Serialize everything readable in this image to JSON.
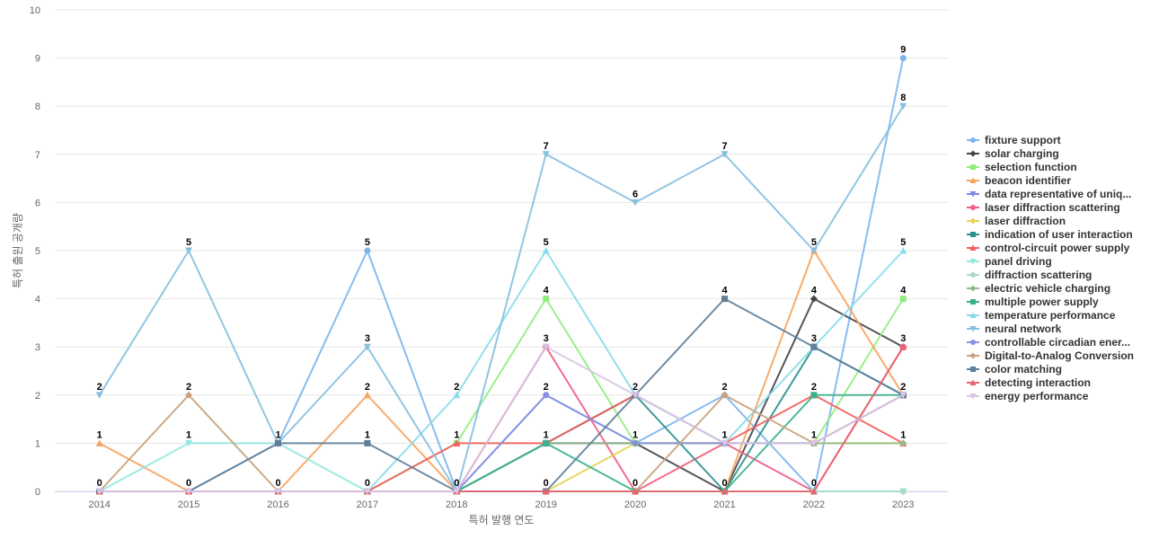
{
  "chart_data": {
    "type": "line",
    "xlabel": "특허 발행 연도",
    "ylabel": "특허 출원 공개량",
    "ylim": [
      0,
      10
    ],
    "yticks": [
      0,
      1,
      2,
      3,
      4,
      5,
      6,
      7,
      8,
      9,
      10
    ],
    "categories": [
      "2014",
      "2015",
      "2016",
      "2017",
      "2018",
      "2019",
      "2020",
      "2021",
      "2022",
      "2023"
    ],
    "grid": "horizontal",
    "legend_position": "right",
    "series": [
      {
        "name": "fixture support",
        "color": "#7cb5ec",
        "marker": "circle",
        "values": [
          0,
          0,
          1,
          5,
          0,
          2,
          1,
          2,
          0,
          9
        ]
      },
      {
        "name": "solar charging",
        "color": "#434348",
        "marker": "diamond",
        "values": [
          0,
          0,
          0,
          0,
          0,
          1,
          1,
          0,
          4,
          3
        ]
      },
      {
        "name": "selection function",
        "color": "#90ed7d",
        "marker": "square",
        "values": [
          0,
          0,
          0,
          0,
          1,
          4,
          1,
          1,
          1,
          4
        ]
      },
      {
        "name": "beacon identifier",
        "color": "#f7a35c",
        "marker": "triangle",
        "values": [
          1,
          0,
          0,
          2,
          0,
          0,
          0,
          0,
          5,
          2
        ]
      },
      {
        "name": "data representative of uniq...",
        "color": "#8085e9",
        "marker": "triangle-down",
        "values": [
          0,
          0,
          0,
          0,
          0,
          0,
          0,
          0,
          0,
          0
        ]
      },
      {
        "name": "laser diffraction scattering",
        "color": "#f15c80",
        "marker": "circle",
        "values": [
          0,
          0,
          0,
          0,
          0,
          3,
          0,
          1,
          0,
          3
        ]
      },
      {
        "name": "laser diffraction",
        "color": "#e4d354",
        "marker": "diamond",
        "values": [
          0,
          0,
          0,
          0,
          0,
          0,
          1,
          1,
          1,
          1
        ]
      },
      {
        "name": "indication of user interaction",
        "color": "#2b908f",
        "marker": "square",
        "values": [
          0,
          0,
          0,
          0,
          0,
          1,
          2,
          0,
          3,
          2
        ]
      },
      {
        "name": "control-circuit power supply",
        "color": "#f45b5b",
        "marker": "triangle",
        "values": [
          0,
          0,
          0,
          0,
          1,
          1,
          2,
          1,
          2,
          1
        ]
      },
      {
        "name": "panel driving",
        "color": "#91e8e1",
        "marker": "triangle-down",
        "values": [
          0,
          1,
          1,
          0,
          0,
          0,
          0,
          0,
          0,
          0
        ]
      },
      {
        "name": "diffraction scattering",
        "color": "#a8dcc5",
        "marker": "circle",
        "values": [
          0,
          0,
          0,
          0,
          0,
          0,
          0,
          0,
          0,
          0
        ]
      },
      {
        "name": "electric vehicle charging",
        "color": "#8fbc8f",
        "marker": "diamond",
        "values": [
          0,
          0,
          0,
          0,
          0,
          1,
          1,
          1,
          1,
          1
        ]
      },
      {
        "name": "multiple power supply",
        "color": "#3cb08a",
        "marker": "square",
        "values": [
          0,
          0,
          0,
          0,
          0,
          1,
          0,
          0,
          2,
          2
        ]
      },
      {
        "name": "temperature performance",
        "color": "#87dcec",
        "marker": "triangle",
        "values": [
          0,
          0,
          0,
          0,
          2,
          5,
          2,
          1,
          3,
          5
        ]
      },
      {
        "name": "neural network",
        "color": "#86bfe0",
        "marker": "triangle-down",
        "values": [
          2,
          5,
          1,
          3,
          0,
          7,
          6,
          7,
          5,
          8
        ]
      },
      {
        "name": "controllable circadian ener...",
        "color": "#8a8fe0",
        "marker": "circle",
        "values": [
          0,
          0,
          0,
          0,
          0,
          2,
          1,
          1,
          1,
          2
        ]
      },
      {
        "name": "Digital-to-Analog Conversion",
        "color": "#c8a27c",
        "marker": "diamond",
        "values": [
          0,
          2,
          0,
          0,
          0,
          0,
          0,
          2,
          1,
          2
        ]
      },
      {
        "name": "color matching",
        "color": "#5f7f99",
        "marker": "square",
        "values": [
          0,
          0,
          1,
          1,
          0,
          0,
          2,
          4,
          3,
          2
        ]
      },
      {
        "name": "detecting interaction",
        "color": "#e8656f",
        "marker": "triangle",
        "values": [
          0,
          0,
          0,
          0,
          0,
          0,
          0,
          0,
          0,
          3
        ]
      },
      {
        "name": "energy performance",
        "color": "#d8c4e4",
        "marker": "triangle-down",
        "values": [
          0,
          0,
          0,
          0,
          0,
          3,
          2,
          1,
          1,
          2
        ]
      }
    ],
    "point_labels": [
      {
        "x": "2014",
        "y": 2,
        "text": "2"
      },
      {
        "x": "2014",
        "y": 1,
        "text": "1"
      },
      {
        "x": "2014",
        "y": 0,
        "text": "0"
      },
      {
        "x": "2015",
        "y": 5,
        "text": "5"
      },
      {
        "x": "2015",
        "y": 2,
        "text": "2"
      },
      {
        "x": "2015",
        "y": 1,
        "text": "1"
      },
      {
        "x": "2015",
        "y": 0,
        "text": "0"
      },
      {
        "x": "2016",
        "y": 1,
        "text": "1"
      },
      {
        "x": "2016",
        "y": 0,
        "text": "0"
      },
      {
        "x": "2017",
        "y": 5,
        "text": "5"
      },
      {
        "x": "2017",
        "y": 3,
        "text": "3"
      },
      {
        "x": "2017",
        "y": 2,
        "text": "2"
      },
      {
        "x": "2017",
        "y": 1,
        "text": "1"
      },
      {
        "x": "2017",
        "y": 0,
        "text": "0"
      },
      {
        "x": "2018",
        "y": 2,
        "text": "2"
      },
      {
        "x": "2018",
        "y": 1,
        "text": "1"
      },
      {
        "x": "2018",
        "y": 0,
        "text": "0"
      },
      {
        "x": "2019",
        "y": 7,
        "text": "7"
      },
      {
        "x": "2019",
        "y": 5,
        "text": "5"
      },
      {
        "x": "2019",
        "y": 4,
        "text": "4"
      },
      {
        "x": "2019",
        "y": 3,
        "text": "3"
      },
      {
        "x": "2019",
        "y": 2,
        "text": "2"
      },
      {
        "x": "2019",
        "y": 1,
        "text": "1"
      },
      {
        "x": "2019",
        "y": 0,
        "text": "0"
      },
      {
        "x": "2020",
        "y": 6,
        "text": "6"
      },
      {
        "x": "2020",
        "y": 2,
        "text": "2"
      },
      {
        "x": "2020",
        "y": 1,
        "text": "1"
      },
      {
        "x": "2020",
        "y": 0,
        "text": "0"
      },
      {
        "x": "2021",
        "y": 7,
        "text": "7"
      },
      {
        "x": "2021",
        "y": 4,
        "text": "4"
      },
      {
        "x": "2021",
        "y": 2,
        "text": "2"
      },
      {
        "x": "2021",
        "y": 1,
        "text": "1"
      },
      {
        "x": "2021",
        "y": 0,
        "text": "0"
      },
      {
        "x": "2022",
        "y": 5,
        "text": "5"
      },
      {
        "x": "2022",
        "y": 4,
        "text": "4"
      },
      {
        "x": "2022",
        "y": 3,
        "text": "3"
      },
      {
        "x": "2022",
        "y": 2,
        "text": "2"
      },
      {
        "x": "2022",
        "y": 1,
        "text": "1"
      },
      {
        "x": "2022",
        "y": 0,
        "text": "0"
      },
      {
        "x": "2023",
        "y": 9,
        "text": "9"
      },
      {
        "x": "2023",
        "y": 8,
        "text": "8"
      },
      {
        "x": "2023",
        "y": 5,
        "text": "5"
      },
      {
        "x": "2023",
        "y": 4,
        "text": "4"
      },
      {
        "x": "2023",
        "y": 3,
        "text": "3"
      },
      {
        "x": "2023",
        "y": 2,
        "text": "2"
      },
      {
        "x": "2023",
        "y": 1,
        "text": "1"
      }
    ]
  }
}
